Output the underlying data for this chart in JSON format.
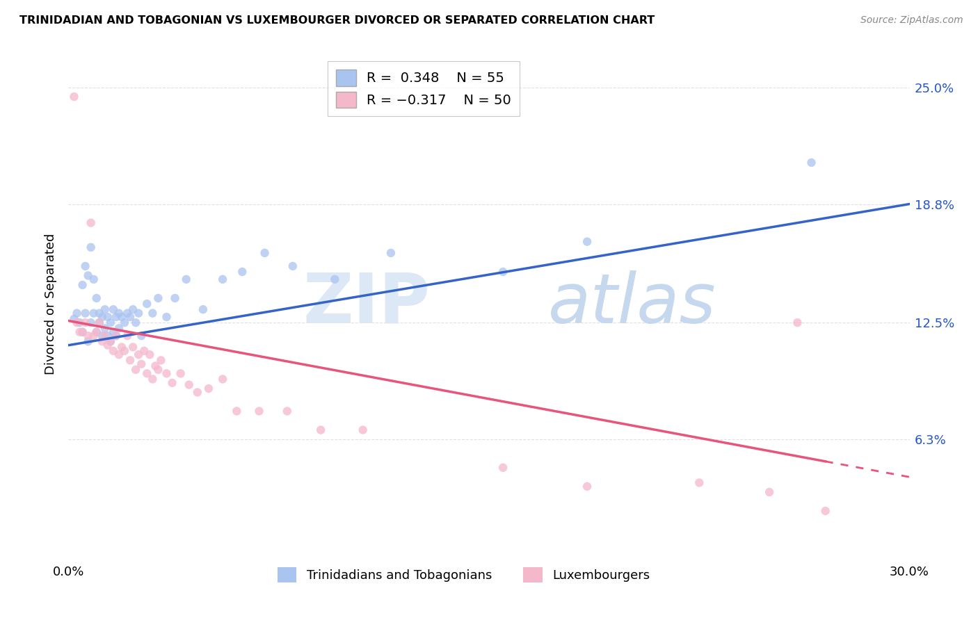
{
  "title": "TRINIDADIAN AND TOBAGONIAN VS LUXEMBOURGER DIVORCED OR SEPARATED CORRELATION CHART",
  "source": "Source: ZipAtlas.com",
  "ylabel": "Divorced or Separated",
  "xlim": [
    0.0,
    0.3
  ],
  "ylim": [
    0.0,
    0.27
  ],
  "ytick_labels": [
    "6.3%",
    "12.5%",
    "18.8%",
    "25.0%"
  ],
  "ytick_positions": [
    0.063,
    0.125,
    0.188,
    0.25
  ],
  "series1_color": "#aac4f0",
  "series2_color": "#f5b8cb",
  "trendline1_color": "#3464c8",
  "trendline2_color": "#e8547a",
  "legend_label1": "Trinidadians and Tobagonians",
  "legend_label2": "Luxembourgers",
  "watermark_zip": "ZIP",
  "watermark_atlas": "atlas",
  "background_color": "#ffffff",
  "grid_color": "#e0e0e0",
  "trendline1_x0": 0.0,
  "trendline1_y0": 0.113,
  "trendline1_x1": 0.3,
  "trendline1_y1": 0.188,
  "trendline2_x0": 0.0,
  "trendline2_y0": 0.126,
  "trendline2_x1": 0.3,
  "trendline2_y1": 0.043,
  "trendline2_solid_end": 0.27,
  "series1_x": [
    0.002,
    0.003,
    0.004,
    0.005,
    0.005,
    0.006,
    0.006,
    0.007,
    0.007,
    0.008,
    0.008,
    0.009,
    0.009,
    0.01,
    0.01,
    0.011,
    0.011,
    0.012,
    0.012,
    0.013,
    0.013,
    0.014,
    0.014,
    0.015,
    0.015,
    0.016,
    0.016,
    0.017,
    0.017,
    0.018,
    0.018,
    0.019,
    0.02,
    0.021,
    0.022,
    0.023,
    0.024,
    0.025,
    0.026,
    0.028,
    0.03,
    0.032,
    0.035,
    0.038,
    0.042,
    0.048,
    0.055,
    0.062,
    0.07,
    0.08,
    0.095,
    0.115,
    0.155,
    0.185,
    0.265
  ],
  "series1_y": [
    0.127,
    0.13,
    0.125,
    0.145,
    0.12,
    0.155,
    0.13,
    0.15,
    0.115,
    0.165,
    0.125,
    0.13,
    0.148,
    0.12,
    0.138,
    0.125,
    0.13,
    0.118,
    0.128,
    0.122,
    0.132,
    0.118,
    0.128,
    0.115,
    0.125,
    0.12,
    0.132,
    0.118,
    0.128,
    0.122,
    0.13,
    0.128,
    0.125,
    0.13,
    0.128,
    0.132,
    0.125,
    0.13,
    0.118,
    0.135,
    0.13,
    0.138,
    0.128,
    0.138,
    0.148,
    0.132,
    0.148,
    0.152,
    0.162,
    0.155,
    0.148,
    0.162,
    0.152,
    0.168,
    0.21
  ],
  "series2_x": [
    0.002,
    0.003,
    0.004,
    0.005,
    0.006,
    0.007,
    0.008,
    0.009,
    0.01,
    0.011,
    0.012,
    0.013,
    0.014,
    0.015,
    0.016,
    0.017,
    0.018,
    0.019,
    0.02,
    0.021,
    0.022,
    0.023,
    0.024,
    0.025,
    0.026,
    0.027,
    0.028,
    0.029,
    0.03,
    0.031,
    0.032,
    0.033,
    0.035,
    0.037,
    0.04,
    0.043,
    0.046,
    0.05,
    0.055,
    0.06,
    0.068,
    0.078,
    0.09,
    0.105,
    0.155,
    0.185,
    0.225,
    0.25,
    0.26,
    0.27
  ],
  "series2_y": [
    0.245,
    0.125,
    0.12,
    0.12,
    0.125,
    0.118,
    0.178,
    0.118,
    0.12,
    0.125,
    0.115,
    0.118,
    0.113,
    0.115,
    0.11,
    0.118,
    0.108,
    0.112,
    0.11,
    0.118,
    0.105,
    0.112,
    0.1,
    0.108,
    0.103,
    0.11,
    0.098,
    0.108,
    0.095,
    0.102,
    0.1,
    0.105,
    0.098,
    0.093,
    0.098,
    0.092,
    0.088,
    0.09,
    0.095,
    0.078,
    0.078,
    0.078,
    0.068,
    0.068,
    0.048,
    0.038,
    0.04,
    0.035,
    0.125,
    0.025
  ]
}
